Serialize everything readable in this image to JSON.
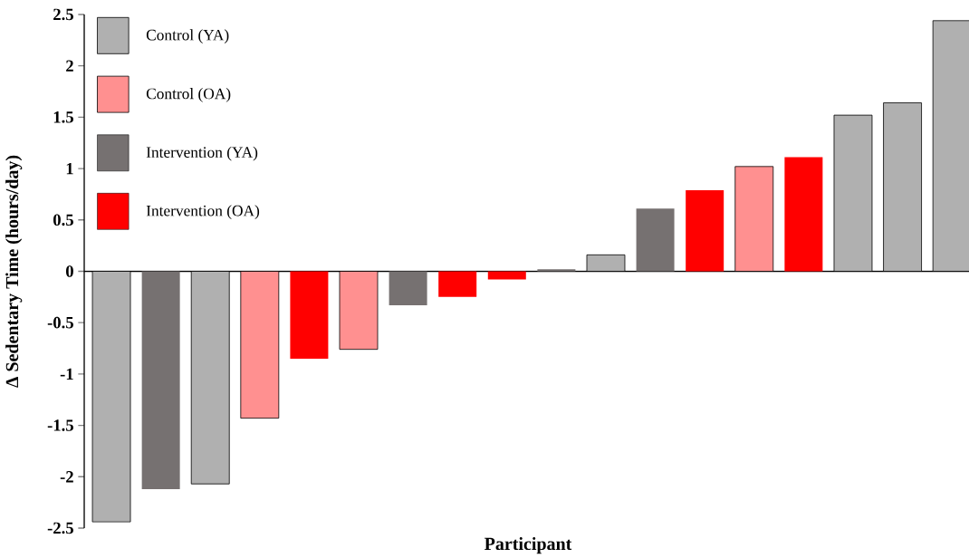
{
  "chart_data": {
    "type": "bar",
    "xlabel": "Participant",
    "ylabel": "Δ Sedentary Time (hours/day)",
    "categories": [
      null,
      null,
      null,
      null,
      null,
      null,
      null,
      null,
      null,
      null,
      null,
      null,
      null,
      null,
      null,
      null,
      null,
      null
    ],
    "series": [
      {
        "name": "Control (YA)",
        "color": "#b0b0b0",
        "values": [
          -2.44,
          null,
          -2.07,
          null,
          null,
          null,
          null,
          null,
          null,
          null,
          0.16,
          null,
          null,
          null,
          null,
          1.52,
          1.64,
          2.44
        ]
      },
      {
        "name": "Control (OA)",
        "color": "#ff9090",
        "values": [
          null,
          null,
          null,
          -1.43,
          null,
          -0.76,
          null,
          null,
          null,
          null,
          null,
          null,
          null,
          1.02,
          null,
          null,
          null,
          null
        ]
      },
      {
        "name": "Intervention (YA)",
        "color": "#767171",
        "values": [
          null,
          -2.12,
          null,
          null,
          null,
          null,
          -0.33,
          null,
          null,
          0.02,
          null,
          0.61,
          null,
          null,
          null,
          null,
          null,
          null
        ]
      },
      {
        "name": "Intervention (OA)",
        "color": "#ff0000",
        "values": [
          null,
          null,
          null,
          null,
          -0.85,
          null,
          null,
          -0.25,
          -0.08,
          null,
          null,
          null,
          0.79,
          null,
          1.11,
          null,
          null,
          null
        ]
      }
    ],
    "ylim": [
      -2.5,
      2.5
    ],
    "yticks": [
      -2.5,
      -2,
      -1.5,
      -1,
      -0.5,
      0,
      0.5,
      1,
      1.5,
      2,
      2.5
    ],
    "legend": "top left"
  }
}
